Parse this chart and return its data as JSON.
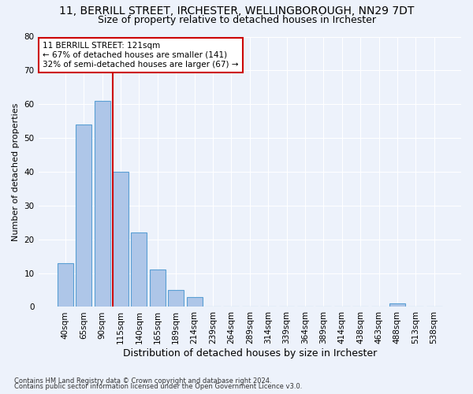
{
  "title_line1": "11, BERRILL STREET, IRCHESTER, WELLINGBOROUGH, NN29 7DT",
  "title_line2": "Size of property relative to detached houses in Irchester",
  "xlabel": "Distribution of detached houses by size in Irchester",
  "ylabel": "Number of detached properties",
  "categories": [
    "40sqm",
    "65sqm",
    "90sqm",
    "115sqm",
    "140sqm",
    "165sqm",
    "189sqm",
    "214sqm",
    "239sqm",
    "264sqm",
    "289sqm",
    "314sqm",
    "339sqm",
    "364sqm",
    "389sqm",
    "414sqm",
    "438sqm",
    "463sqm",
    "488sqm",
    "513sqm",
    "538sqm"
  ],
  "values": [
    13,
    54,
    61,
    40,
    22,
    11,
    5,
    3,
    0,
    0,
    0,
    0,
    0,
    0,
    0,
    0,
    0,
    0,
    1,
    0,
    0
  ],
  "bar_color": "#aec6e8",
  "bar_edge_color": "#5a9fd4",
  "vline_x_index": 3,
  "vline_color": "#cc0000",
  "ylim": [
    0,
    80
  ],
  "yticks": [
    0,
    10,
    20,
    30,
    40,
    50,
    60,
    70,
    80
  ],
  "annotation_text": "11 BERRILL STREET: 121sqm\n← 67% of detached houses are smaller (141)\n32% of semi-detached houses are larger (67) →",
  "annotation_box_color": "#ffffff",
  "annotation_border_color": "#cc0000",
  "footer_line1": "Contains HM Land Registry data © Crown copyright and database right 2024.",
  "footer_line2": "Contains public sector information licensed under the Open Government Licence v3.0.",
  "background_color": "#edf2fb",
  "grid_color": "#ffffff",
  "title_fontsize": 10,
  "subtitle_fontsize": 9,
  "ylabel_fontsize": 8,
  "xlabel_fontsize": 9,
  "tick_fontsize": 7.5,
  "annotation_fontsize": 7.5,
  "footer_fontsize": 6
}
